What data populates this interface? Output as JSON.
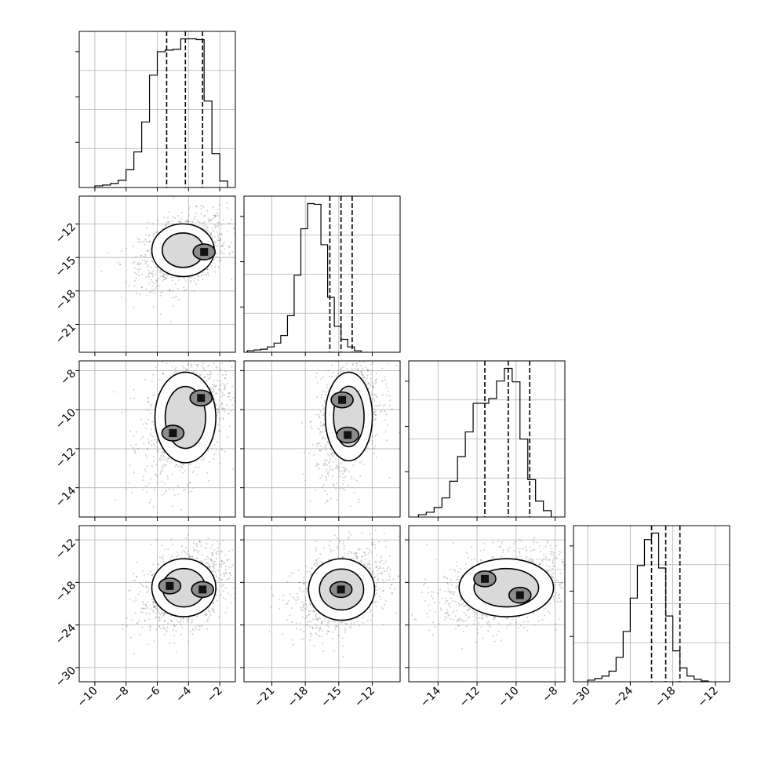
{
  "chart_data": {
    "type": "corner",
    "grid": true,
    "parameters": [
      "",
      "",
      "",
      ""
    ],
    "axis_ranges": [
      [
        -11,
        -1
      ],
      [
        -23.5,
        -9.5
      ],
      [
        -15.5,
        -7.5
      ],
      [
        -32,
        -10
      ]
    ],
    "tick_values": [
      [
        -10,
        -8,
        -6,
        -4,
        -2
      ],
      [
        -21,
        -18,
        -15,
        -12
      ],
      [
        -14,
        -12,
        -10,
        -8
      ],
      [
        -30,
        -24,
        -18,
        -12
      ]
    ],
    "tick_labels": [
      [
        "−10",
        "−8",
        "−6",
        "−4",
        "−2"
      ],
      [
        "−21",
        "−18",
        "−15",
        "−12"
      ],
      [
        "−14",
        "−12",
        "−10",
        "−8"
      ],
      [
        "−30",
        "−24",
        "−18",
        "−12"
      ]
    ],
    "quantiles": [
      [
        -5.4,
        -4.2,
        -3.1
      ],
      [
        -15.8,
        -14.8,
        -13.8
      ],
      [
        -11.6,
        -10.4,
        -9.3
      ],
      [
        -21.0,
        -19.0,
        -17.0
      ]
    ],
    "histograms": [
      {
        "edges_from": -10.0,
        "bin_width": 0.5,
        "counts": [
          2,
          3,
          5,
          9,
          22,
          44,
          81,
          139,
          168,
          170,
          171,
          184,
          184,
          183,
          107,
          42,
          8
        ]
      },
      {
        "edges_from": -23.2,
        "bin_width": 0.6,
        "counts": [
          2,
          3,
          4,
          7,
          12,
          22,
          48,
          101,
          162,
          195,
          194,
          141,
          72,
          34,
          17,
          7,
          2
        ]
      },
      {
        "edges_from": -15.0,
        "bin_width": 0.4,
        "counts": [
          3,
          6,
          12,
          24,
          45,
          76,
          107,
          143,
          143,
          149,
          171,
          187,
          170,
          98,
          47,
          20,
          8
        ]
      },
      {
        "edges_from": -30.0,
        "bin_width": 1.0,
        "counts": [
          2,
          4,
          7,
          13,
          30,
          62,
          103,
          143,
          175,
          183,
          140,
          81,
          38,
          17,
          7,
          3,
          1
        ]
      }
    ],
    "pairs": [
      {
        "x_param": 0,
        "y_param": 1,
        "peaks": [
          [
            -3.0,
            -14.5
          ]
        ],
        "extent": [
          [
            -6.2,
            -2.5
          ],
          [
            -16.5,
            -12.2
          ]
        ]
      },
      {
        "x_param": 0,
        "y_param": 2,
        "peaks": [
          [
            -3.2,
            -9.4
          ],
          [
            -5.0,
            -11.2
          ]
        ],
        "extent": [
          [
            -6.0,
            -2.4
          ],
          [
            -12.6,
            -8.2
          ]
        ]
      },
      {
        "x_param": 1,
        "y_param": 2,
        "peaks": [
          [
            -14.7,
            -9.5
          ],
          [
            -14.2,
            -11.3
          ]
        ],
        "extent": [
          [
            -16.0,
            -12.2
          ],
          [
            -12.5,
            -8.2
          ]
        ]
      },
      {
        "x_param": 0,
        "y_param": 3,
        "peaks": [
          [
            -3.1,
            -19.0
          ],
          [
            -5.2,
            -18.5
          ]
        ],
        "extent": [
          [
            -6.2,
            -2.4
          ],
          [
            -22.5,
            -15.0
          ]
        ]
      },
      {
        "x_param": 1,
        "y_param": 3,
        "peaks": [
          [
            -14.8,
            -19.0
          ]
        ],
        "extent": [
          [
            -17.5,
            -12.0
          ],
          [
            -23.0,
            -15.0
          ]
        ]
      },
      {
        "x_param": 2,
        "y_param": 3,
        "peaks": [
          [
            -9.8,
            -19.8
          ],
          [
            -11.6,
            -17.5
          ]
        ],
        "extent": [
          [
            -12.8,
            -8.2
          ],
          [
            -22.5,
            -15.0
          ]
        ]
      }
    ]
  }
}
